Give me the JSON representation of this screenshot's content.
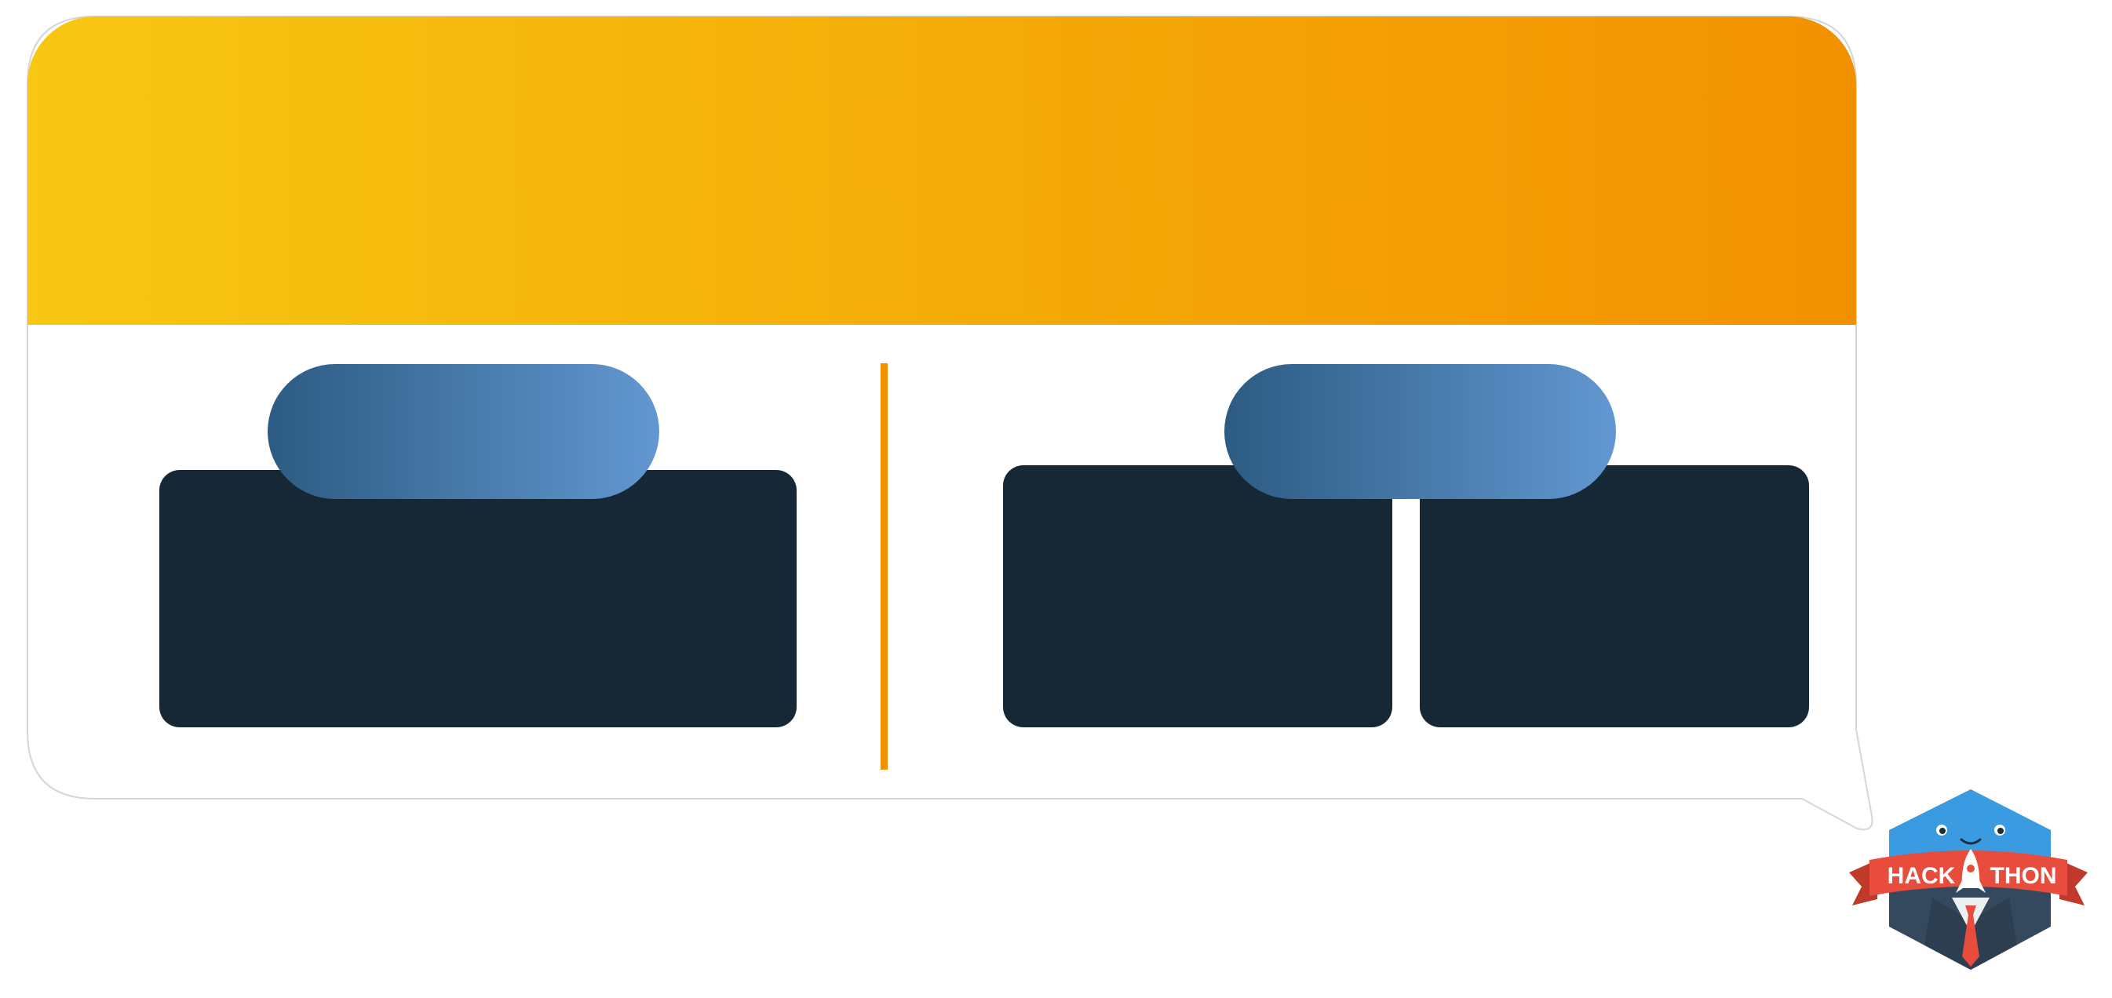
{
  "header": {
    "text": "",
    "gradient": [
      "#f7c712",
      "#f29100"
    ]
  },
  "left_section": {
    "pill_label": "",
    "panel_text": ""
  },
  "right_section": {
    "pill_label": "",
    "panel_left_text": "",
    "panel_right_text": ""
  },
  "colors": {
    "panel": "#162736",
    "pill_start": "#2c5b82",
    "pill_end": "#6297d1",
    "divider": "#f29100",
    "bubble_border": "#d6d6d6"
  },
  "logo": {
    "name": "hackathon-mascot-logo",
    "text_left": "HACK",
    "text_right": "THON"
  }
}
